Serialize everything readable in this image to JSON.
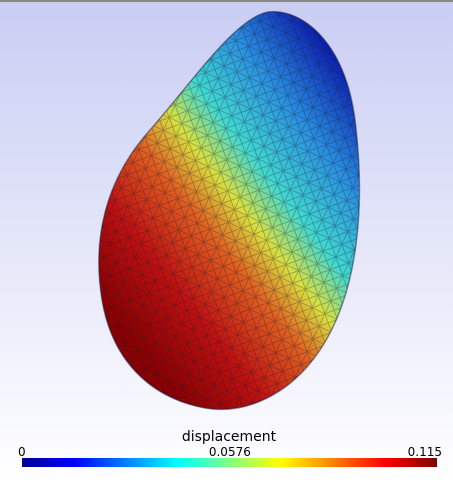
{
  "colorbar": {
    "title": "displacement",
    "ticks": [
      0,
      0.0576,
      0.115
    ]
  }
}
